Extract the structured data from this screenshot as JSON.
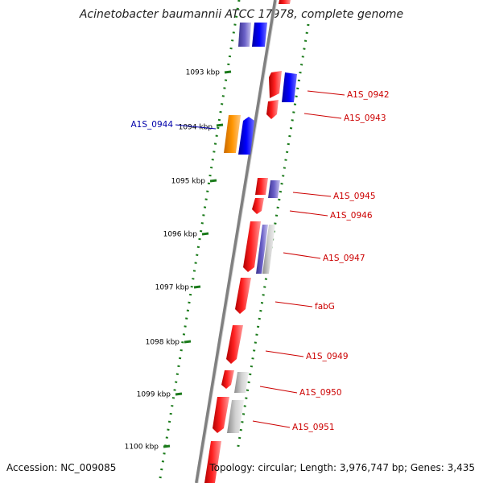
{
  "title": "Acinetobacter baumannii ATCC 17978, complete genome",
  "footer": {
    "accession": "Accession: NC_009085",
    "summary": "Topology: circular; Length: 3,976,747 bp; Genes: 3,435"
  },
  "ruler": [
    {
      "label": "1093 kbp"
    },
    {
      "label": "1094 kbp"
    },
    {
      "label": "1095 kbp"
    },
    {
      "label": "1096 kbp"
    },
    {
      "label": "1097 kbp"
    },
    {
      "label": "1098 kbp"
    },
    {
      "label": "1099 kbp"
    },
    {
      "label": "1100 kbp"
    }
  ],
  "genes": [
    {
      "label": "A1S_0942",
      "color": "#cc0000"
    },
    {
      "label": "A1S_0943",
      "color": "#cc0000"
    },
    {
      "label": "A1S_0944",
      "color": "#0000aa"
    },
    {
      "label": "A1S_0945",
      "color": "#cc0000"
    },
    {
      "label": "A1S_0946",
      "color": "#cc0000"
    },
    {
      "label": "A1S_0947",
      "color": "#cc0000"
    },
    {
      "label": "fabG",
      "color": "#cc0000"
    },
    {
      "label": "A1S_0949",
      "color": "#cc0000"
    },
    {
      "label": "A1S_0950",
      "color": "#cc0000"
    },
    {
      "label": "A1S_0951",
      "color": "#cc0000"
    }
  ],
  "colors": {
    "forward_gene": "#ff0000",
    "blue_gene": "#0000ff",
    "orange_gene": "#ff8c00",
    "gray_gene": "#b0b0b0",
    "purple_gene": "#5a4fb0",
    "tick": "#1a7a1a",
    "backbone": "#808080"
  }
}
